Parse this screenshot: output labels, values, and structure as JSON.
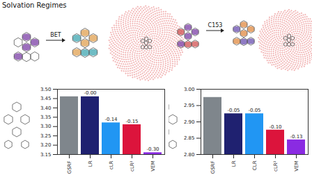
{
  "title": "Solvation Regimes",
  "panels": [
    {
      "label": "BET"
    },
    {
      "label": "C153"
    }
  ],
  "chart_data": [
    {
      "type": "bar",
      "categories": [
        "GSRF",
        "LR",
        "cLR",
        "cLR²",
        "VEM"
      ],
      "values": [
        3.46,
        3.46,
        3.32,
        3.31,
        3.16
      ],
      "colors": [
        "#7f868c",
        "#1f2170",
        "#2196f3",
        "#dc143c",
        "#8a2be2"
      ],
      "ylim": [
        3.15,
        3.5
      ],
      "yticks": [
        {
          "value": 3.15,
          "label": "3.15"
        },
        {
          "value": 3.2,
          "label": "3.20"
        },
        {
          "value": 3.25,
          "label": "3.25"
        },
        {
          "value": 3.3,
          "label": "3.30"
        },
        {
          "value": 3.35,
          "label": "3.35"
        },
        {
          "value": 3.4,
          "label": "3.40"
        },
        {
          "value": 3.45,
          "label": "3.45"
        },
        {
          "value": 3.5,
          "label": "3.50"
        }
      ],
      "grid": false,
      "annotations": [
        {
          "category": "LR",
          "text": "-0.00"
        },
        {
          "category": "cLR",
          "text": "-0.14"
        },
        {
          "category": "cLR²",
          "text": "-0.15"
        },
        {
          "category": "VEM",
          "text": "-0.30"
        }
      ]
    },
    {
      "type": "bar",
      "categories": [
        "GSRF",
        "LR",
        "CLR",
        "cLR²",
        "VEM"
      ],
      "values": [
        2.975,
        2.925,
        2.925,
        2.875,
        2.845
      ],
      "colors": [
        "#7f868c",
        "#1f2170",
        "#2196f3",
        "#dc143c",
        "#8a2be2"
      ],
      "ylim": [
        2.8,
        3.0
      ],
      "yticks": [
        {
          "value": 2.8,
          "label": "2.80"
        },
        {
          "value": 2.85,
          "label": "2.85"
        },
        {
          "value": 2.9,
          "label": "2.90"
        },
        {
          "value": 2.95,
          "label": "2.95"
        },
        {
          "value": 3.0,
          "label": "3.00"
        }
      ],
      "grid": false,
      "annotations": [
        {
          "category": "LR",
          "text": "-0.05"
        },
        {
          "category": "CLR",
          "text": "-0.05"
        },
        {
          "category": "cLR²",
          "text": "-0.10"
        },
        {
          "category": "VEM",
          "text": "-0.13"
        }
      ]
    }
  ]
}
